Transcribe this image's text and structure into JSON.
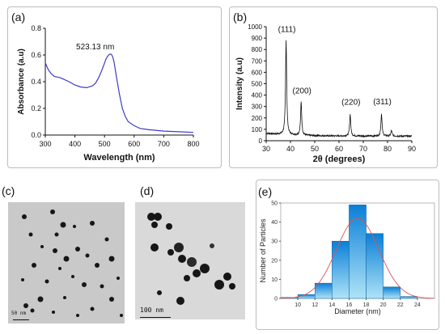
{
  "colors": {
    "uv_line": "#3c3cc8",
    "xrd_line": "#111111",
    "hist_fill_light": "#aee3f7",
    "hist_fill_dark": "#0a7fd6",
    "fit_curve": "#e05050"
  },
  "chart_data": [
    {
      "panel_label": "(a)",
      "type": "line",
      "xlabel": "Wavelength (nm)",
      "ylabel": "Absorbance (a.u)",
      "xlim": [
        300,
        800
      ],
      "ylim": [
        0.0,
        0.8
      ],
      "x_ticks": [
        "300",
        "400",
        "500",
        "600",
        "700",
        "800"
      ],
      "y_ticks": [
        "0.0",
        "0.2",
        "0.4",
        "0.6",
        "0.8"
      ],
      "annotation": "523.13 nm",
      "peak": {
        "x": 523.13,
        "y": 0.605
      },
      "series": [
        {
          "x": [
            300,
            310,
            320,
            330,
            340,
            350,
            360,
            380,
            400,
            420,
            440,
            460,
            470,
            480,
            490,
            500,
            505,
            510,
            515,
            520,
            523,
            527,
            532,
            540,
            550,
            560,
            570,
            580,
            600,
            620,
            650,
            700,
            750,
            800
          ],
          "y": [
            0.54,
            0.49,
            0.46,
            0.44,
            0.435,
            0.43,
            0.42,
            0.4,
            0.375,
            0.36,
            0.355,
            0.37,
            0.39,
            0.43,
            0.48,
            0.54,
            0.57,
            0.59,
            0.602,
            0.607,
            0.605,
            0.59,
            0.55,
            0.44,
            0.31,
            0.2,
            0.14,
            0.1,
            0.07,
            0.05,
            0.04,
            0.03,
            0.025,
            0.02
          ]
        }
      ]
    },
    {
      "panel_label": "(b)",
      "type": "line",
      "xlabel": "2θ (degrees)",
      "ylabel": "Intensity (a.u)",
      "xlim": [
        30,
        90
      ],
      "ylim": [
        0,
        1000
      ],
      "x_ticks": [
        "30",
        "40",
        "50",
        "60",
        "70",
        "80",
        "90"
      ],
      "y_ticks": [
        "0",
        "100",
        "200",
        "300",
        "400",
        "500",
        "600",
        "700",
        "800",
        "900",
        "1000"
      ],
      "baseline": 40,
      "peaks": [
        {
          "x": 38.2,
          "y": 870,
          "label": "(111)"
        },
        {
          "x": 44.4,
          "y": 330,
          "label": "(200)"
        },
        {
          "x": 64.6,
          "y": 230,
          "label": "(220)"
        },
        {
          "x": 77.5,
          "y": 235,
          "label": "(311)"
        },
        {
          "x": 81.6,
          "y": 90,
          "label": ""
        }
      ]
    },
    {
      "panel_label": "(e)",
      "type": "bar",
      "xlabel": "Diameter (nm)",
      "ylabel": "Number of Particles",
      "xlim": [
        8,
        26
      ],
      "ylim": [
        0,
        50
      ],
      "x_ticks": [
        "10",
        "12",
        "14",
        "16",
        "18",
        "20",
        "22",
        "24"
      ],
      "y_ticks": [
        "0",
        "10",
        "20",
        "30",
        "40",
        "50"
      ],
      "bin_width": 2,
      "bin_centers": [
        9,
        11,
        13,
        15,
        17,
        19,
        21,
        23
      ],
      "values": [
        0.5,
        2,
        8,
        30,
        49,
        34,
        6,
        1
      ],
      "fit": {
        "type": "gaussian",
        "mean": 17,
        "sd": 2.5,
        "peak": 42
      }
    }
  ],
  "images": [
    {
      "panel_label": "(c)",
      "scalebar": "50 nm"
    },
    {
      "panel_label": "(d)",
      "scalebar": "100 nm"
    }
  ]
}
